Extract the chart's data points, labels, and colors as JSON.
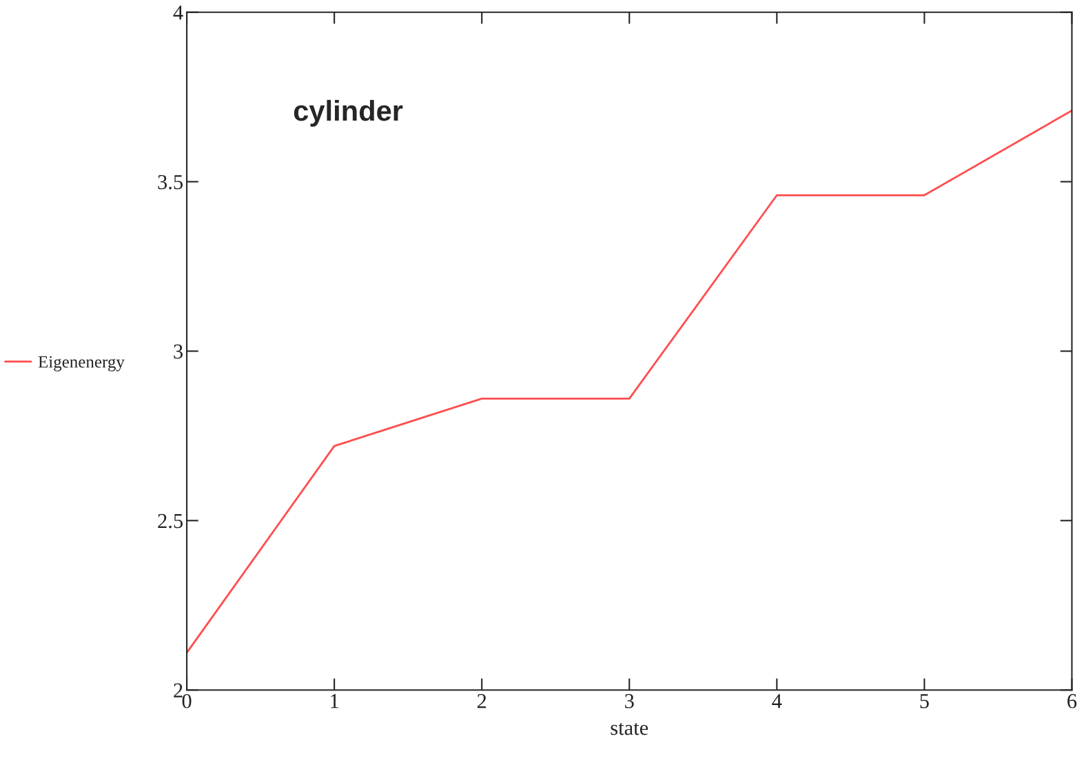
{
  "chart_data": {
    "type": "line",
    "xlabel": "state",
    "annotations": [
      "cylinder"
    ],
    "x": [
      0,
      1,
      2,
      3,
      4,
      5,
      6
    ],
    "series": [
      {
        "name": "Eigenenergy",
        "color": "#ff4d4d",
        "values": [
          2.11,
          2.72,
          2.86,
          2.86,
          3.46,
          3.46,
          3.71
        ]
      }
    ],
    "xlim": [
      0,
      6
    ],
    "xticks": [
      0,
      1,
      2,
      3,
      4,
      5,
      6
    ],
    "ylim": [
      2,
      4
    ],
    "yticks": [
      2,
      2.5,
      3,
      3.5,
      4
    ],
    "grid": false,
    "legend": "left",
    "marker": "none",
    "line_style": "solid"
  }
}
